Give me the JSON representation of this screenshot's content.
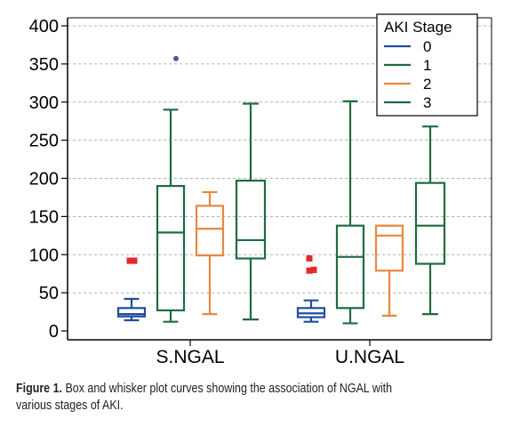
{
  "chart_data": {
    "type": "box",
    "title": "",
    "xlabel": "",
    "ylabel": "",
    "ylim": [
      0,
      400
    ],
    "y_ticks": [
      0,
      50,
      100,
      150,
      200,
      250,
      300,
      350,
      400
    ],
    "y_tick_labels": [
      "0",
      "50",
      "100",
      "150",
      "200",
      "250",
      "300",
      "350",
      "400"
    ],
    "grid": "horizontal dashed",
    "legend_title": "AKI Stage",
    "legend_position": "top-right",
    "categories": [
      "S.NGAL",
      "U.NGAL"
    ],
    "series": [
      {
        "name": "0",
        "color": "#1f4e9c",
        "boxes": [
          {
            "category": "S.NGAL",
            "whisker_low": 14,
            "q1": 19,
            "median": 22,
            "q3": 30,
            "whisker_high": 42,
            "outliers": [
              92,
              92
            ]
          },
          {
            "category": "U.NGAL",
            "whisker_low": 12,
            "q1": 18,
            "median": 23,
            "q3": 30,
            "whisker_high": 40,
            "outliers": [
              95,
              80,
              79,
              80
            ]
          }
        ]
      },
      {
        "name": "1",
        "color": "#1e6b3f",
        "boxes": [
          {
            "category": "S.NGAL",
            "whisker_low": 12,
            "q1": 27,
            "median": 129,
            "q3": 190,
            "whisker_high": 290,
            "outliers": [
              357
            ]
          },
          {
            "category": "U.NGAL",
            "whisker_low": 10,
            "q1": 30,
            "median": 97,
            "q3": 138,
            "whisker_high": 301,
            "outliers": []
          }
        ]
      },
      {
        "name": "2",
        "color": "#e8873e",
        "boxes": [
          {
            "category": "S.NGAL",
            "whisker_low": 22,
            "q1": 99,
            "median": 134,
            "q3": 164,
            "whisker_high": 182,
            "outliers": []
          },
          {
            "category": "U.NGAL",
            "whisker_low": 20,
            "q1": 79,
            "median": 125,
            "q3": 138,
            "whisker_high": 138,
            "outliers": []
          }
        ]
      },
      {
        "name": "3",
        "color": "#1e6b3f",
        "boxes": [
          {
            "category": "S.NGAL",
            "whisker_low": 15,
            "q1": 95,
            "median": 119,
            "q3": 197,
            "whisker_high": 298,
            "outliers": []
          },
          {
            "category": "U.NGAL",
            "whisker_low": 22,
            "q1": 88,
            "median": 138,
            "q3": 194,
            "whisker_high": 268,
            "outliers": []
          }
        ]
      }
    ],
    "outlier_colors": {
      "S.NGAL-1": "#5a4fa0",
      "default": "#e8282a"
    }
  },
  "caption": {
    "label": "Figure 1.",
    "text": " Box and whisker plot curves showing the association of NGAL with various stages of AKI."
  }
}
